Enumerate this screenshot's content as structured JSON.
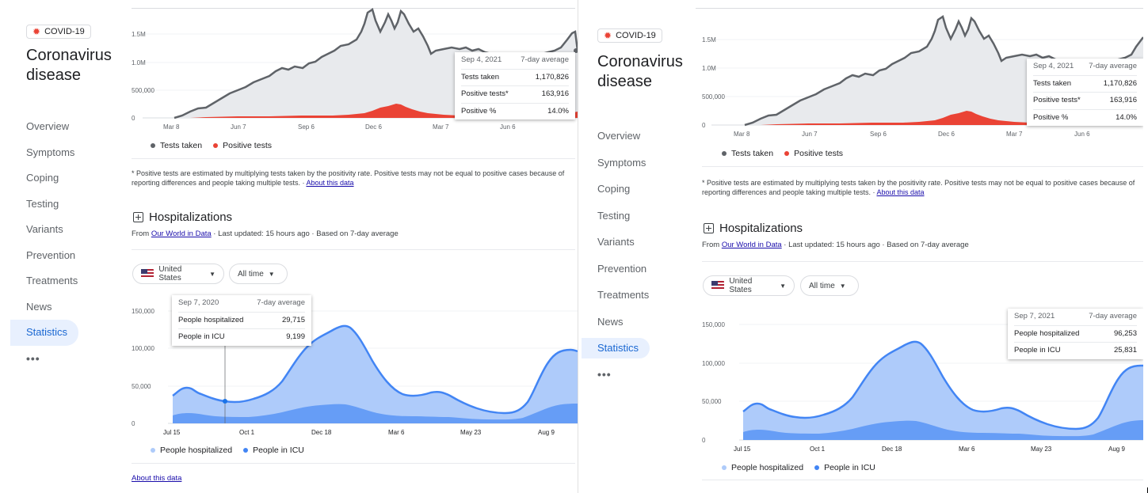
{
  "app": {
    "badge": "COVID-19",
    "badge_icon": "virus-icon",
    "title_line1": "Coronavirus",
    "title_line2": "disease"
  },
  "sidebar": {
    "items": [
      {
        "label": "Overview"
      },
      {
        "label": "Symptoms"
      },
      {
        "label": "Coping"
      },
      {
        "label": "Testing"
      },
      {
        "label": "Variants"
      },
      {
        "label": "Prevention"
      },
      {
        "label": "Treatments"
      },
      {
        "label": "News"
      },
      {
        "label": "Statistics",
        "active": true
      }
    ],
    "more": "•••"
  },
  "tests": {
    "legend": {
      "taken": "Tests taken",
      "positive": "Positive tests"
    },
    "footnote": "* Positive tests are estimated by multiplying tests taken by the positivity rate. Positive tests may not be equal to positive cases because of reporting differences and people taking multiple tests.",
    "footnote_sep": " · ",
    "footnote_link": "About this data",
    "tooltip": {
      "date": "Sep 4, 2021",
      "basis": "7-day average",
      "rows": [
        {
          "label": "Tests taken",
          "value": "1,170,826"
        },
        {
          "label": "Positive tests*",
          "value": "163,916"
        },
        {
          "label": "Positive %",
          "value": "14.0%"
        }
      ]
    }
  },
  "hospital": {
    "title": "Hospitalizations",
    "source_prefix": "From ",
    "source_link": "Our World in Data",
    "source_suffix": " · Last updated: 15 hours ago · Based on 7-day average",
    "country": "United States",
    "range": "All time",
    "legend": {
      "hosp": "People hospitalized",
      "icu": "People in ICU"
    },
    "about": "About this data",
    "tooltip_left": {
      "date": "Sep 7, 2020",
      "basis": "7-day average",
      "rows": [
        {
          "label": "People hospitalized",
          "value": "29,715"
        },
        {
          "label": "People in ICU",
          "value": "9,199"
        }
      ]
    },
    "tooltip_right": {
      "date": "Sep 7, 2021",
      "basis": "7-day average",
      "rows": [
        {
          "label": "People hospitalized",
          "value": "96,253"
        },
        {
          "label": "People in ICU",
          "value": "25,831"
        }
      ]
    }
  },
  "colors": {
    "tests_line": "#5f6368",
    "tests_fill": "#e8eaed",
    "positive": "#ea4335",
    "hosp_line": "#4285f4",
    "hosp_fill": "#aecbfa",
    "icu_fill": "#669df6",
    "legend_hosp_dot": "#aecbfa",
    "legend_icu_dot": "#4285f4"
  },
  "chart_data": [
    {
      "type": "area",
      "series": [
        {
          "name": "Tests taken",
          "values": [
            0,
            300000,
            520000,
            650000,
            900000,
            1050000,
            1100000,
            1300000,
            1500000,
            1850000,
            1600000,
            1350000,
            1200000,
            1150000,
            1400000,
            1170826
          ]
        },
        {
          "name": "Positive tests",
          "values": [
            0,
            10000,
            15000,
            20000,
            30000,
            40000,
            45000,
            90000,
            180000,
            230000,
            160000,
            60000,
            30000,
            15000,
            60000,
            163916
          ]
        }
      ],
      "x_ticks": [
        "Mar 8",
        "Jun 7",
        "Sep 6",
        "Dec 6",
        "Mar 7",
        "Jun 6"
      ],
      "y_ticks": [
        "0",
        "500,000",
        "1.0M",
        "1.5M"
      ],
      "ylim": [
        0,
        2000000
      ]
    },
    {
      "type": "area",
      "series": [
        {
          "name": "People hospitalized",
          "values": [
            38000,
            46000,
            36000,
            29715,
            28000,
            35000,
            60000,
            100000,
            120000,
            128000,
            95000,
            50000,
            36000,
            38000,
            39000,
            30000,
            18000,
            14000,
            30000,
            80000,
            96253
          ]
        },
        {
          "name": "People in ICU",
          "values": [
            10000,
            14000,
            11000,
            9199,
            8000,
            9000,
            14000,
            22000,
            27000,
            28000,
            22000,
            12000,
            9000,
            9500,
            10000,
            8000,
            5000,
            4000,
            9000,
            20000,
            25831
          ]
        }
      ],
      "x_ticks": [
        "Jul 15",
        "Oct 1",
        "Dec 18",
        "Mar 6",
        "May 23",
        "Aug 9"
      ],
      "y_ticks": [
        "0",
        "50,000",
        "100,000",
        "150,000"
      ],
      "ylim": [
        0,
        160000
      ]
    }
  ]
}
